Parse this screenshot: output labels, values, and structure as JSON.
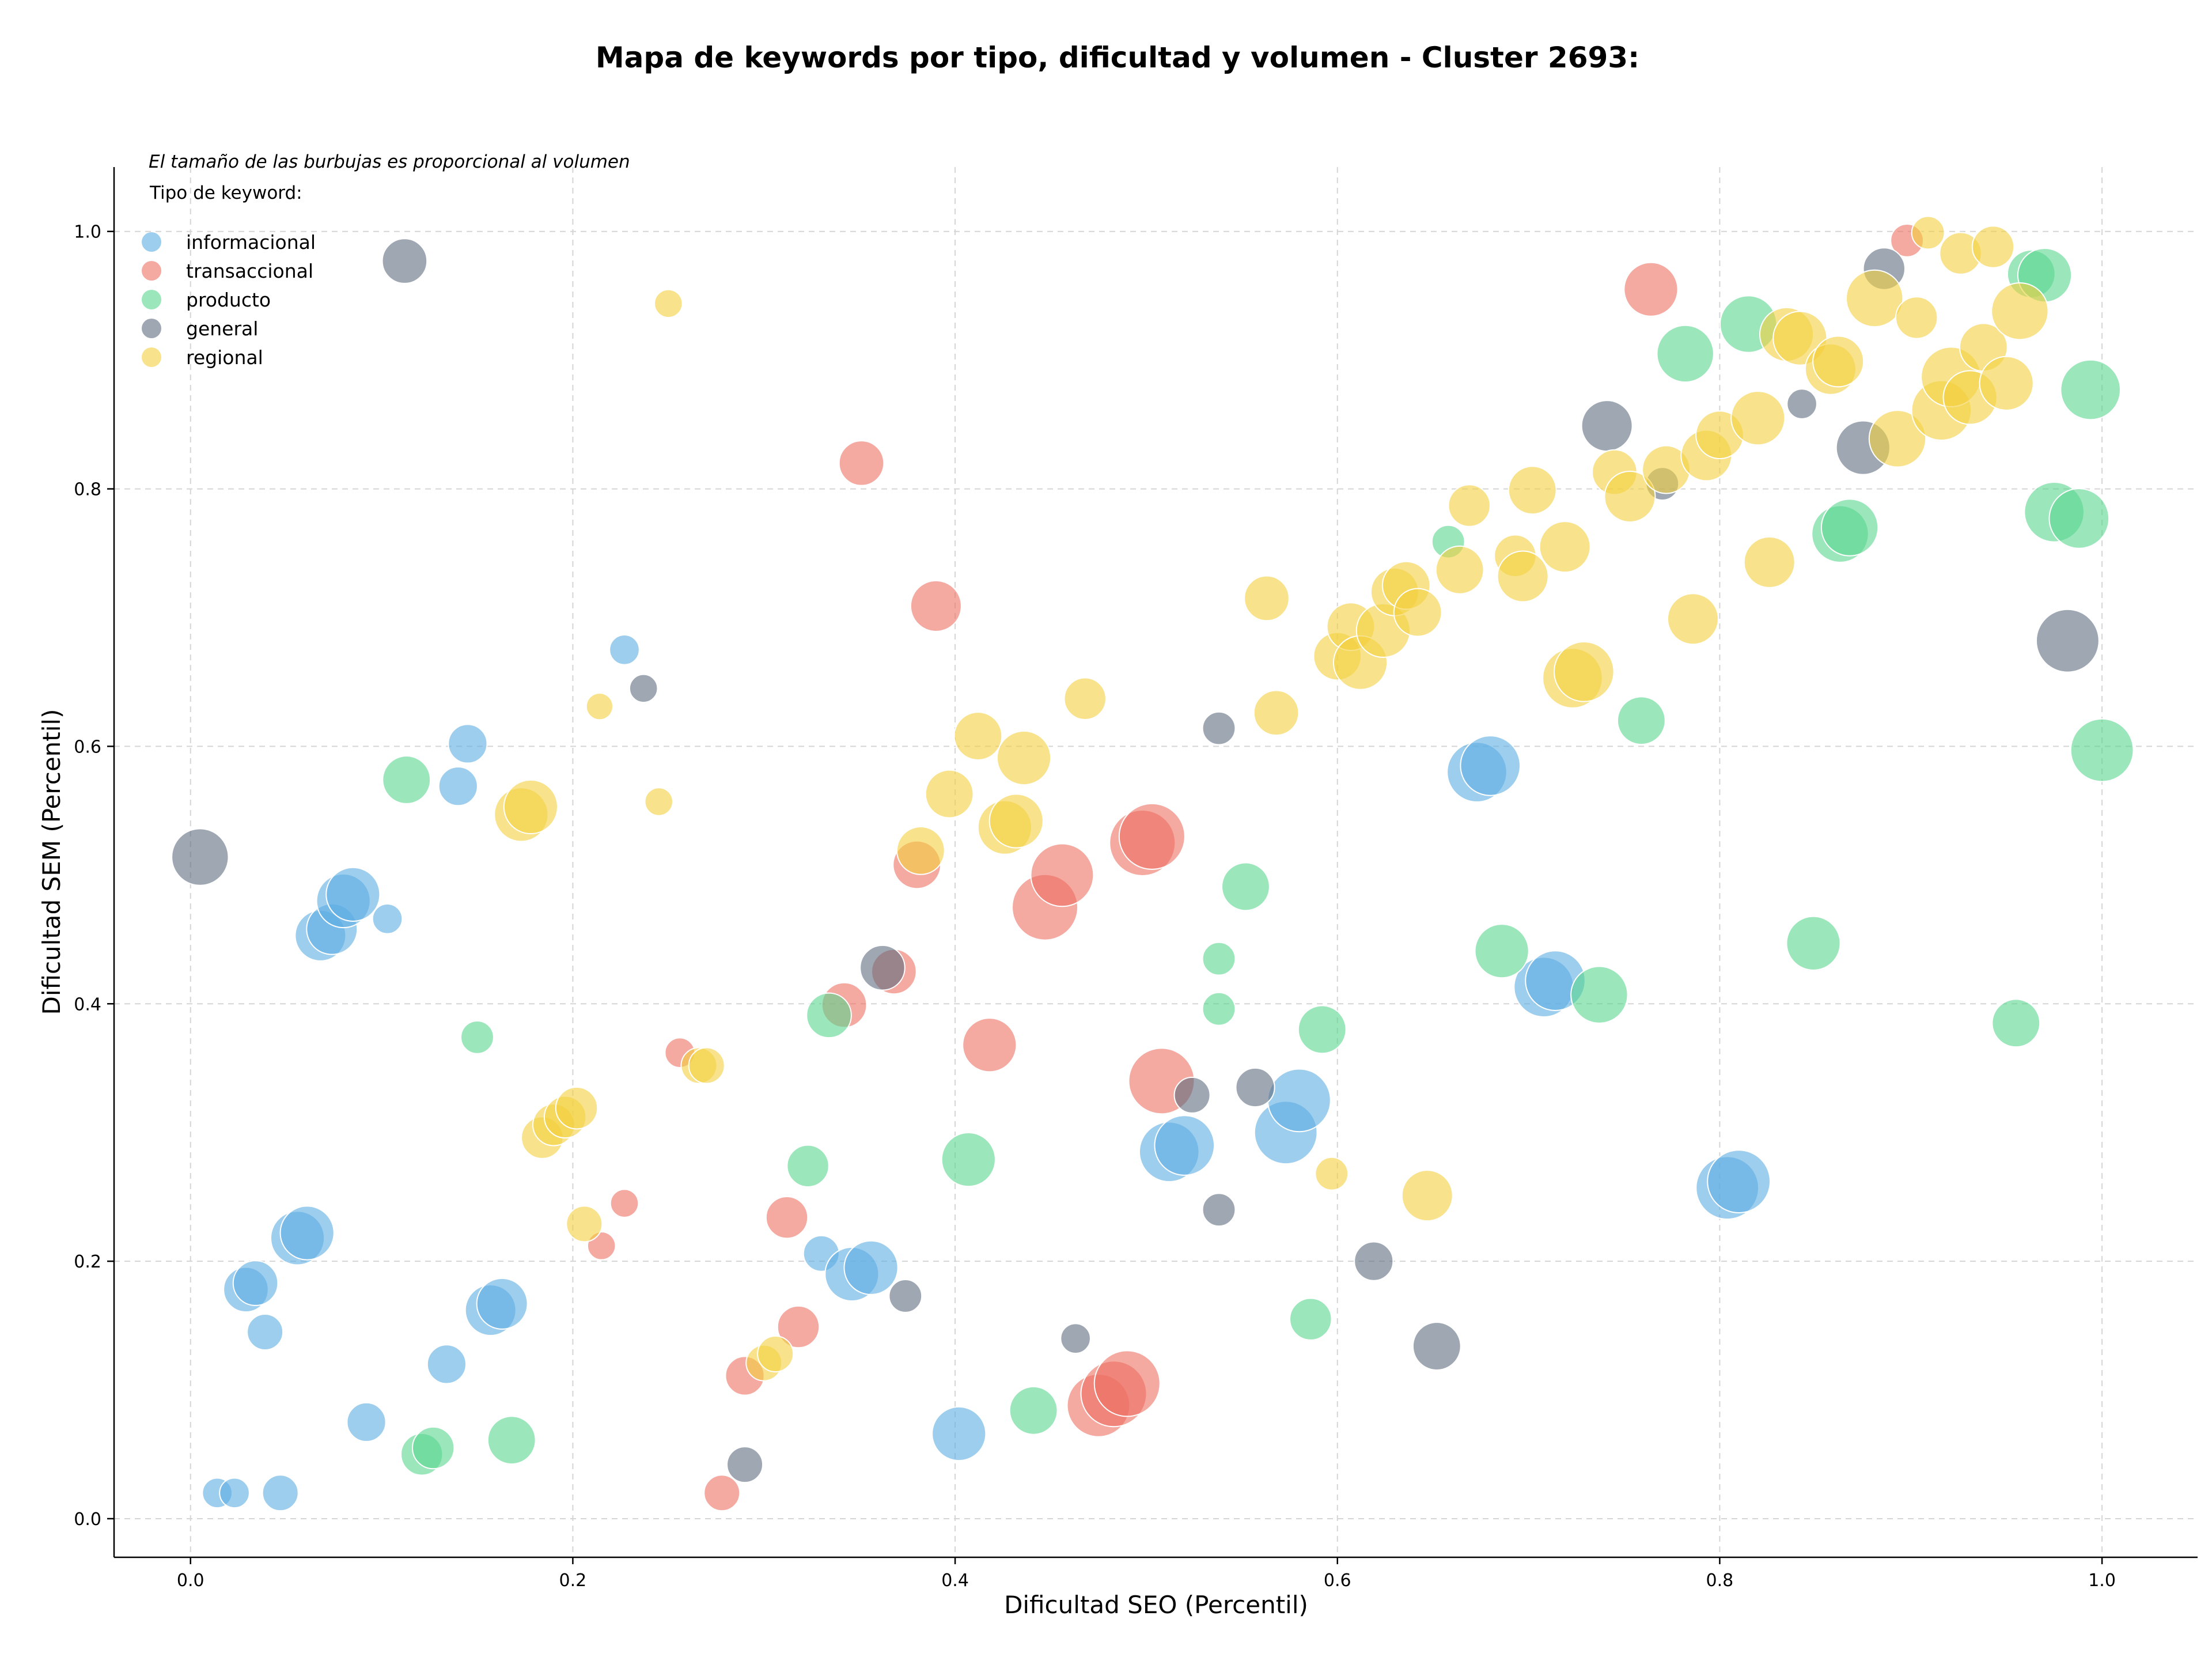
{
  "chart_data": {
    "type": "scatter",
    "title": "Mapa de keywords por tipo, dificultad y volumen - Cluster 2693:",
    "xlabel": "Dificultad SEO (Percentil)",
    "ylabel": "Dificultad SEM (Percentil)",
    "note": "El tamaño de las burbujas es proporcional al volumen",
    "legend_title": "Tipo de keyword:",
    "legend_position": "top-left",
    "grid": true,
    "xlim": [
      -0.04,
      1.05
    ],
    "ylim": [
      -0.03,
      1.05
    ],
    "xticks": [
      "0.0",
      "0.2",
      "0.4",
      "0.6",
      "0.8",
      "1.0"
    ],
    "yticks": [
      "0.0",
      "0.2",
      "0.4",
      "0.6",
      "0.8",
      "1.0"
    ],
    "bubble_size_scale": "relative volume 0-1",
    "series": [
      {
        "name": "informacional",
        "color": "#5dade2",
        "points": [
          [
            0.014,
            0.02,
            0.15
          ],
          [
            0.023,
            0.02,
            0.15
          ],
          [
            0.047,
            0.02,
            0.25
          ],
          [
            0.092,
            0.075,
            0.3
          ],
          [
            0.039,
            0.145,
            0.25
          ],
          [
            0.029,
            0.178,
            0.4
          ],
          [
            0.034,
            0.183,
            0.4
          ],
          [
            0.056,
            0.218,
            0.55
          ],
          [
            0.061,
            0.222,
            0.55
          ],
          [
            0.068,
            0.453,
            0.5
          ],
          [
            0.074,
            0.458,
            0.5
          ],
          [
            0.08,
            0.48,
            0.55
          ],
          [
            0.085,
            0.485,
            0.55
          ],
          [
            0.103,
            0.466,
            0.15
          ],
          [
            0.134,
            0.12,
            0.3
          ],
          [
            0.14,
            0.569,
            0.3
          ],
          [
            0.145,
            0.602,
            0.3
          ],
          [
            0.157,
            0.162,
            0.5
          ],
          [
            0.163,
            0.167,
            0.5
          ],
          [
            0.227,
            0.675,
            0.15
          ],
          [
            0.33,
            0.206,
            0.25
          ],
          [
            0.346,
            0.19,
            0.55
          ],
          [
            0.356,
            0.195,
            0.55
          ],
          [
            0.402,
            0.066,
            0.55
          ],
          [
            0.512,
            0.285,
            0.65
          ],
          [
            0.52,
            0.29,
            0.65
          ],
          [
            0.573,
            0.3,
            0.7
          ],
          [
            0.58,
            0.325,
            0.7
          ],
          [
            0.673,
            0.58,
            0.65
          ],
          [
            0.68,
            0.585,
            0.65
          ],
          [
            0.708,
            0.413,
            0.65
          ],
          [
            0.714,
            0.418,
            0.65
          ],
          [
            0.804,
            0.257,
            0.7
          ],
          [
            0.81,
            0.262,
            0.7
          ]
        ]
      },
      {
        "name": "transaccional",
        "color": "#ec7063",
        "points": [
          [
            0.215,
            0.212,
            0.12
          ],
          [
            0.227,
            0.245,
            0.12
          ],
          [
            0.256,
            0.362,
            0.15
          ],
          [
            0.278,
            0.02,
            0.25
          ],
          [
            0.29,
            0.111,
            0.3
          ],
          [
            0.312,
            0.234,
            0.35
          ],
          [
            0.318,
            0.149,
            0.35
          ],
          [
            0.342,
            0.399,
            0.4
          ],
          [
            0.351,
            0.82,
            0.4
          ],
          [
            0.368,
            0.425,
            0.4
          ],
          [
            0.38,
            0.508,
            0.45
          ],
          [
            0.39,
            0.709,
            0.5
          ],
          [
            0.418,
            0.368,
            0.55
          ],
          [
            0.447,
            0.475,
            0.75
          ],
          [
            0.456,
            0.5,
            0.7
          ],
          [
            0.475,
            0.088,
            0.7
          ],
          [
            0.483,
            0.097,
            0.75
          ],
          [
            0.49,
            0.105,
            0.75
          ],
          [
            0.498,
            0.525,
            0.75
          ],
          [
            0.503,
            0.53,
            0.75
          ],
          [
            0.508,
            0.34,
            0.75
          ],
          [
            0.764,
            0.955,
            0.55
          ],
          [
            0.898,
            0.993,
            0.2
          ]
        ]
      },
      {
        "name": "producto",
        "color": "#58d68d",
        "points": [
          [
            0.121,
            0.05,
            0.35
          ],
          [
            0.127,
            0.055,
            0.35
          ],
          [
            0.113,
            0.574,
            0.45
          ],
          [
            0.15,
            0.374,
            0.2
          ],
          [
            0.168,
            0.061,
            0.45
          ],
          [
            0.323,
            0.274,
            0.35
          ],
          [
            0.334,
            0.391,
            0.4
          ],
          [
            0.407,
            0.279,
            0.55
          ],
          [
            0.441,
            0.084,
            0.45
          ],
          [
            0.538,
            0.435,
            0.2
          ],
          [
            0.538,
            0.396,
            0.2
          ],
          [
            0.552,
            0.491,
            0.45
          ],
          [
            0.586,
            0.155,
            0.35
          ],
          [
            0.592,
            0.38,
            0.45
          ],
          [
            0.658,
            0.759,
            0.2
          ],
          [
            0.686,
            0.441,
            0.55
          ],
          [
            0.737,
            0.407,
            0.6
          ],
          [
            0.759,
            0.62,
            0.45
          ],
          [
            0.782,
            0.905,
            0.6
          ],
          [
            0.815,
            0.928,
            0.6
          ],
          [
            0.849,
            0.447,
            0.55
          ],
          [
            0.863,
            0.765,
            0.6
          ],
          [
            0.868,
            0.77,
            0.6
          ],
          [
            0.955,
            0.385,
            0.45
          ],
          [
            0.963,
            0.967,
            0.45
          ],
          [
            0.97,
            0.966,
            0.55
          ],
          [
            0.975,
            0.782,
            0.65
          ],
          [
            0.988,
            0.777,
            0.65
          ],
          [
            0.994,
            0.877,
            0.65
          ],
          [
            1.0,
            0.597,
            0.7
          ]
        ]
      },
      {
        "name": "general",
        "color": "#5d6d7e",
        "points": [
          [
            0.005,
            0.514,
            0.6
          ],
          [
            0.112,
            0.977,
            0.4
          ],
          [
            0.237,
            0.645,
            0.12
          ],
          [
            0.29,
            0.042,
            0.25
          ],
          [
            0.362,
            0.428,
            0.4
          ],
          [
            0.374,
            0.173,
            0.2
          ],
          [
            0.463,
            0.14,
            0.15
          ],
          [
            0.524,
            0.329,
            0.25
          ],
          [
            0.538,
            0.614,
            0.2
          ],
          [
            0.538,
            0.24,
            0.2
          ],
          [
            0.557,
            0.335,
            0.3
          ],
          [
            0.619,
            0.2,
            0.3
          ],
          [
            0.652,
            0.134,
            0.45
          ],
          [
            0.741,
            0.849,
            0.5
          ],
          [
            0.77,
            0.804,
            0.2
          ],
          [
            0.843,
            0.866,
            0.15
          ],
          [
            0.875,
            0.832,
            0.55
          ],
          [
            0.886,
            0.971,
            0.35
          ],
          [
            0.982,
            0.682,
            0.7
          ]
        ]
      },
      {
        "name": "regional",
        "color": "#f4d03f",
        "points": [
          [
            0.214,
            0.631,
            0.1
          ],
          [
            0.25,
            0.944,
            0.12
          ],
          [
            0.245,
            0.557,
            0.12
          ],
          [
            0.173,
            0.547,
            0.55
          ],
          [
            0.178,
            0.553,
            0.55
          ],
          [
            0.184,
            0.296,
            0.35
          ],
          [
            0.19,
            0.306,
            0.35
          ],
          [
            0.196,
            0.312,
            0.35
          ],
          [
            0.202,
            0.319,
            0.35
          ],
          [
            0.206,
            0.229,
            0.25
          ],
          [
            0.266,
            0.352,
            0.25
          ],
          [
            0.27,
            0.352,
            0.25
          ],
          [
            0.3,
            0.121,
            0.25
          ],
          [
            0.306,
            0.128,
            0.25
          ],
          [
            0.382,
            0.519,
            0.45
          ],
          [
            0.397,
            0.563,
            0.45
          ],
          [
            0.412,
            0.608,
            0.45
          ],
          [
            0.426,
            0.537,
            0.55
          ],
          [
            0.432,
            0.542,
            0.55
          ],
          [
            0.436,
            0.591,
            0.55
          ],
          [
            0.468,
            0.637,
            0.35
          ],
          [
            0.563,
            0.715,
            0.4
          ],
          [
            0.568,
            0.626,
            0.4
          ],
          [
            0.597,
            0.268,
            0.2
          ],
          [
            0.6,
            0.67,
            0.45
          ],
          [
            0.607,
            0.693,
            0.45
          ],
          [
            0.612,
            0.665,
            0.55
          ],
          [
            0.624,
            0.69,
            0.55
          ],
          [
            0.63,
            0.72,
            0.45
          ],
          [
            0.636,
            0.725,
            0.45
          ],
          [
            0.642,
            0.704,
            0.45
          ],
          [
            0.647,
            0.251,
            0.5
          ],
          [
            0.664,
            0.737,
            0.45
          ],
          [
            0.669,
            0.787,
            0.35
          ],
          [
            0.693,
            0.748,
            0.35
          ],
          [
            0.697,
            0.732,
            0.5
          ],
          [
            0.702,
            0.799,
            0.45
          ],
          [
            0.723,
            0.653,
            0.65
          ],
          [
            0.729,
            0.658,
            0.65
          ],
          [
            0.719,
            0.755,
            0.5
          ],
          [
            0.745,
            0.813,
            0.4
          ],
          [
            0.753,
            0.794,
            0.5
          ],
          [
            0.772,
            0.815,
            0.45
          ],
          [
            0.786,
            0.699,
            0.5
          ],
          [
            0.793,
            0.826,
            0.5
          ],
          [
            0.8,
            0.842,
            0.45
          ],
          [
            0.82,
            0.855,
            0.55
          ],
          [
            0.826,
            0.743,
            0.5
          ],
          [
            0.835,
            0.92,
            0.55
          ],
          [
            0.842,
            0.917,
            0.55
          ],
          [
            0.858,
            0.893,
            0.5
          ],
          [
            0.862,
            0.899,
            0.5
          ],
          [
            0.881,
            0.948,
            0.6
          ],
          [
            0.893,
            0.839,
            0.6
          ],
          [
            0.903,
            0.933,
            0.35
          ],
          [
            0.909,
            0.999,
            0.2
          ],
          [
            0.916,
            0.861,
            0.65
          ],
          [
            0.921,
            0.887,
            0.65
          ],
          [
            0.926,
            0.983,
            0.35
          ],
          [
            0.931,
            0.871,
            0.55
          ],
          [
            0.938,
            0.91,
            0.45
          ],
          [
            0.943,
            0.988,
            0.35
          ],
          [
            0.95,
            0.882,
            0.55
          ],
          [
            0.957,
            0.938,
            0.6
          ]
        ]
      }
    ]
  }
}
